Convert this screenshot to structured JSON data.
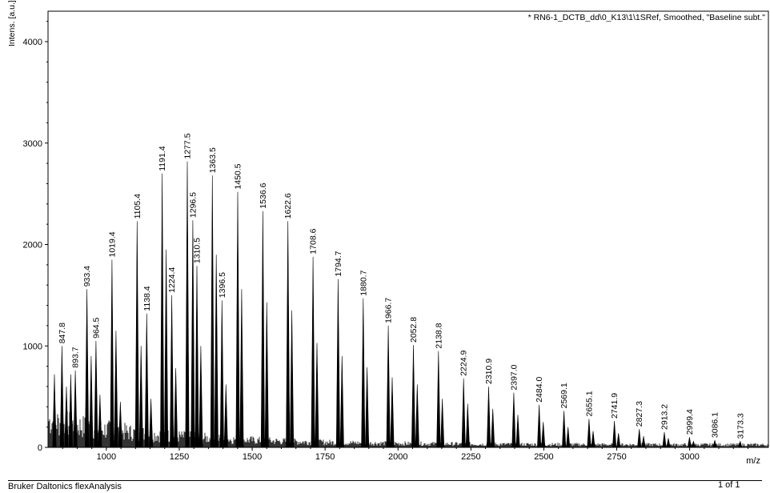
{
  "footer": {
    "left": "Bruker Daltonics flexAnalysis",
    "right": "1 of 1"
  },
  "chart_data": {
    "type": "line",
    "title": "* RN6-1_DCTB_dd\\0_K13\\1\\1SRef, Smoothed, \"Baseline subt.\"",
    "xlabel": "m/z",
    "ylabel": "Intens. [a.u.]",
    "xlim": [
      800,
      3270
    ],
    "ylim": [
      0,
      4300
    ],
    "xticks": [
      1000,
      1250,
      1500,
      1750,
      2000,
      2250,
      2500,
      2750,
      3000
    ],
    "yticks": [
      0,
      1000,
      2000,
      3000,
      4000
    ],
    "grid": false,
    "labeled_peaks": [
      {
        "mz": 847.8,
        "intensity": 1000,
        "label": "847.8"
      },
      {
        "mz": 893.7,
        "intensity": 760,
        "label": "893.7"
      },
      {
        "mz": 933.4,
        "intensity": 1560,
        "label": "933.4"
      },
      {
        "mz": 964.5,
        "intensity": 1050,
        "label": "964.5"
      },
      {
        "mz": 1019.4,
        "intensity": 1850,
        "label": "1019.4"
      },
      {
        "mz": 1105.4,
        "intensity": 2230,
        "label": "1105.4"
      },
      {
        "mz": 1138.4,
        "intensity": 1320,
        "label": "1138.4"
      },
      {
        "mz": 1191.4,
        "intensity": 2700,
        "label": "1191.4"
      },
      {
        "mz": 1224.4,
        "intensity": 1500,
        "label": "1224.4"
      },
      {
        "mz": 1277.5,
        "intensity": 2820,
        "label": "1277.5"
      },
      {
        "mz": 1296.5,
        "intensity": 2240,
        "label": "1296.5"
      },
      {
        "mz": 1310.5,
        "intensity": 1790,
        "label": "1310.5"
      },
      {
        "mz": 1363.5,
        "intensity": 2680,
        "label": "1363.5"
      },
      {
        "mz": 1396.5,
        "intensity": 1450,
        "label": "1396.5"
      },
      {
        "mz": 1450.5,
        "intensity": 2520,
        "label": "1450.5"
      },
      {
        "mz": 1536.6,
        "intensity": 2330,
        "label": "1536.6"
      },
      {
        "mz": 1622.6,
        "intensity": 2230,
        "label": "1622.6"
      },
      {
        "mz": 1708.6,
        "intensity": 1880,
        "label": "1708.6"
      },
      {
        "mz": 1794.7,
        "intensity": 1660,
        "label": "1794.7"
      },
      {
        "mz": 1880.7,
        "intensity": 1470,
        "label": "1880.7"
      },
      {
        "mz": 1966.7,
        "intensity": 1200,
        "label": "1966.7"
      },
      {
        "mz": 2052.8,
        "intensity": 1010,
        "label": "2052.8"
      },
      {
        "mz": 2138.8,
        "intensity": 950,
        "label": "2138.8"
      },
      {
        "mz": 2224.9,
        "intensity": 680,
        "label": "2224.9"
      },
      {
        "mz": 2310.9,
        "intensity": 600,
        "label": "2310.9"
      },
      {
        "mz": 2397.0,
        "intensity": 540,
        "label": "2397.0"
      },
      {
        "mz": 2484.0,
        "intensity": 420,
        "label": "2484.0"
      },
      {
        "mz": 2569.1,
        "intensity": 360,
        "label": "2569.1"
      },
      {
        "mz": 2655.1,
        "intensity": 280,
        "label": "2655.1"
      },
      {
        "mz": 2741.9,
        "intensity": 260,
        "label": "2741.9"
      },
      {
        "mz": 2827.3,
        "intensity": 180,
        "label": "2827.3"
      },
      {
        "mz": 2913.2,
        "intensity": 150,
        "label": "2913.2"
      },
      {
        "mz": 2999.4,
        "intensity": 100,
        "label": "2999.4"
      },
      {
        "mz": 3086.1,
        "intensity": 70,
        "label": "3086.1"
      },
      {
        "mz": 3173.3,
        "intensity": 60,
        "label": "3173.3"
      }
    ],
    "unlabeled_peaks": [
      {
        "mz": 822,
        "intensity": 720
      },
      {
        "mz": 863,
        "intensity": 600
      },
      {
        "mz": 878,
        "intensity": 720
      },
      {
        "mz": 948,
        "intensity": 900
      },
      {
        "mz": 978,
        "intensity": 520
      },
      {
        "mz": 1033,
        "intensity": 1150
      },
      {
        "mz": 1048,
        "intensity": 450
      },
      {
        "mz": 1119,
        "intensity": 1000
      },
      {
        "mz": 1153,
        "intensity": 480
      },
      {
        "mz": 1205,
        "intensity": 1950
      },
      {
        "mz": 1238,
        "intensity": 780
      },
      {
        "mz": 1324,
        "intensity": 1000
      },
      {
        "mz": 1377,
        "intensity": 1900
      },
      {
        "mz": 1410,
        "intensity": 620
      },
      {
        "mz": 1464,
        "intensity": 1560
      },
      {
        "mz": 1550,
        "intensity": 1430
      },
      {
        "mz": 1636,
        "intensity": 1350
      },
      {
        "mz": 1722,
        "intensity": 1030
      },
      {
        "mz": 1808,
        "intensity": 900
      },
      {
        "mz": 1894,
        "intensity": 790
      },
      {
        "mz": 1980,
        "intensity": 690
      },
      {
        "mz": 2066,
        "intensity": 620
      },
      {
        "mz": 2152,
        "intensity": 480
      },
      {
        "mz": 2239,
        "intensity": 430
      },
      {
        "mz": 2325,
        "intensity": 380
      },
      {
        "mz": 2411,
        "intensity": 320
      },
      {
        "mz": 2498,
        "intensity": 250
      },
      {
        "mz": 2583,
        "intensity": 200
      },
      {
        "mz": 2669,
        "intensity": 160
      },
      {
        "mz": 2756,
        "intensity": 140
      },
      {
        "mz": 2842,
        "intensity": 110
      },
      {
        "mz": 2927,
        "intensity": 90
      },
      {
        "mz": 3013,
        "intensity": 60
      }
    ]
  }
}
